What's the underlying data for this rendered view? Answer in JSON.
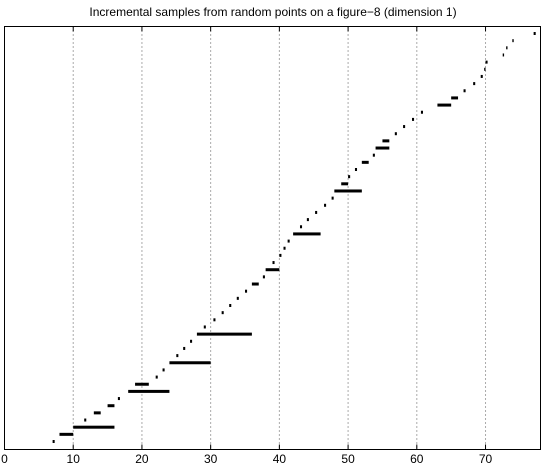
{
  "chart_data": {
    "type": "barcode",
    "title": "Incremental samples from random points on a figure−8 (dimension 1)",
    "xlabel": "",
    "ylabel": "",
    "xlim": [
      0,
      78
    ],
    "xticks": [
      0,
      10,
      20,
      30,
      40,
      50,
      60,
      70
    ],
    "xtick_labels": [
      "0",
      "10",
      "20",
      "30",
      "40",
      "50",
      "60",
      "70"
    ],
    "vertical_dotted_lines_at": [
      10,
      20,
      30,
      40,
      50,
      60,
      70
    ],
    "bar_color": "#000000",
    "intervals": [
      [
        7,
        7.3
      ],
      [
        8,
        10
      ],
      [
        10,
        16
      ],
      [
        11.6,
        11.9
      ],
      [
        13,
        14
      ],
      [
        15,
        16
      ],
      [
        16.5,
        16.8
      ],
      [
        18,
        24
      ],
      [
        19,
        21
      ],
      [
        22,
        22.3
      ],
      [
        23,
        23.3
      ],
      [
        24,
        30
      ],
      [
        25,
        25.3
      ],
      [
        26,
        26.3
      ],
      [
        27,
        27.3
      ],
      [
        28,
        36
      ],
      [
        29,
        29.3
      ],
      [
        30.4,
        30.7
      ],
      [
        31.6,
        31.9
      ],
      [
        32.7,
        33
      ],
      [
        33.8,
        34.1
      ],
      [
        35,
        35.3
      ],
      [
        36,
        37
      ],
      [
        37.6,
        37.9
      ],
      [
        38,
        40
      ],
      [
        39,
        39.3
      ],
      [
        40,
        40.3
      ],
      [
        40.6,
        40.9
      ],
      [
        41.2,
        41.5
      ],
      [
        42,
        46
      ],
      [
        43,
        43.3
      ],
      [
        44,
        44.3
      ],
      [
        45.2,
        45.5
      ],
      [
        46.5,
        46.8
      ],
      [
        47.6,
        47.9
      ],
      [
        48,
        52
      ],
      [
        49,
        50
      ],
      [
        50,
        50.3
      ],
      [
        51,
        51.3
      ],
      [
        52,
        53
      ],
      [
        53.6,
        53.9
      ],
      [
        54,
        56
      ],
      [
        55,
        56
      ],
      [
        56.8,
        57.1
      ],
      [
        58,
        58.3
      ],
      [
        59.3,
        59.6
      ],
      [
        60.6,
        60.9
      ],
      [
        63,
        65
      ],
      [
        65,
        66
      ],
      [
        66.8,
        67.1
      ],
      [
        68.2,
        68.5
      ],
      [
        69.3,
        69.6
      ],
      [
        69.8,
        70
      ],
      [
        70,
        70.3
      ],
      [
        72.5,
        72.7
      ],
      [
        73,
        73.2
      ],
      [
        73.9,
        74.1
      ],
      [
        77,
        77.3
      ]
    ]
  }
}
